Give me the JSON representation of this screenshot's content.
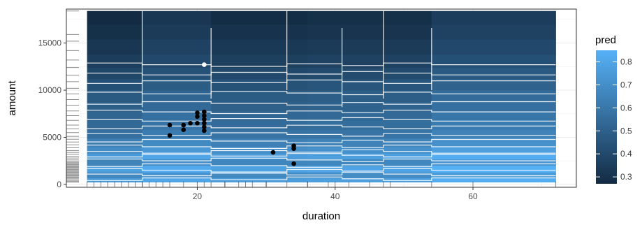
{
  "chart_data": {
    "type": "heatmap",
    "title": "",
    "xlabel": "duration",
    "ylabel": "amount",
    "xlim": [
      1,
      75
    ],
    "ylim": [
      -300,
      18600
    ],
    "x_ticks": [
      20,
      40,
      60
    ],
    "y_ticks": [
      0,
      5000,
      10000,
      15000
    ],
    "x_tick_labels": [
      "20",
      "40",
      "60"
    ],
    "y_tick_labels": [
      "0",
      "5000",
      "10000",
      "15000"
    ],
    "grid": true,
    "surface": {
      "x_range": [
        4,
        72
      ],
      "y_range": [
        250,
        18400
      ],
      "amount_bands": [
        {
          "y": [
            250,
            700
          ],
          "pred": 0.78
        },
        {
          "y": [
            700,
            1300
          ],
          "pred": 0.7
        },
        {
          "y": [
            1300,
            2000
          ],
          "pred": 0.8
        },
        {
          "y": [
            2000,
            2700
          ],
          "pred": 0.68
        },
        {
          "y": [
            2700,
            3300
          ],
          "pred": 0.78
        },
        {
          "y": [
            3300,
            4000
          ],
          "pred": 0.72
        },
        {
          "y": [
            4000,
            4900
          ],
          "pred": 0.66
        },
        {
          "y": [
            4900,
            5800
          ],
          "pred": 0.6
        },
        {
          "y": [
            5800,
            6800
          ],
          "pred": 0.57
        },
        {
          "y": [
            6800,
            7800
          ],
          "pred": 0.55
        },
        {
          "y": [
            7800,
            8800
          ],
          "pred": 0.52
        },
        {
          "y": [
            8800,
            10000
          ],
          "pred": 0.5
        },
        {
          "y": [
            10000,
            11200
          ],
          "pred": 0.46
        },
        {
          "y": [
            11200,
            12400
          ],
          "pred": 0.42
        },
        {
          "y": [
            12400,
            13800
          ],
          "pred": 0.38
        },
        {
          "y": [
            13800,
            15400
          ],
          "pred": 0.35
        },
        {
          "y": [
            15400,
            17000
          ],
          "pred": 0.32
        },
        {
          "y": [
            17000,
            18400
          ],
          "pred": 0.3
        }
      ],
      "duration_bands": [
        {
          "x": [
            4,
            12
          ],
          "shift": -0.03
        },
        {
          "x": [
            12,
            22
          ],
          "shift": 0.02
        },
        {
          "x": [
            22,
            36
          ],
          "shift": -0.02
        },
        {
          "x": [
            36,
            54
          ],
          "shift": -0.01
        },
        {
          "x": [
            54,
            72
          ],
          "shift": 0.05
        }
      ]
    },
    "contour_levels_amount": [
      600,
      1100,
      1500,
      2000,
      2600,
      3100,
      3500,
      4000,
      4600,
      5300,
      6100,
      6900,
      7700,
      8600,
      9700,
      10900,
      11800,
      12700
    ],
    "contour_vertical_breaks_duration": [
      12,
      22,
      33,
      41,
      47,
      54
    ],
    "points": [
      {
        "duration": 16,
        "amount": 6300,
        "color": "black"
      },
      {
        "duration": 16,
        "amount": 5200,
        "color": "black"
      },
      {
        "duration": 18,
        "amount": 6300,
        "color": "black"
      },
      {
        "duration": 18,
        "amount": 5800,
        "color": "black"
      },
      {
        "duration": 19,
        "amount": 6500,
        "color": "black"
      },
      {
        "duration": 20,
        "amount": 7600,
        "color": "black"
      },
      {
        "duration": 20,
        "amount": 7200,
        "color": "black"
      },
      {
        "duration": 20,
        "amount": 6500,
        "color": "black"
      },
      {
        "duration": 21,
        "amount": 7700,
        "color": "black"
      },
      {
        "duration": 21,
        "amount": 7300,
        "color": "black"
      },
      {
        "duration": 21,
        "amount": 6900,
        "color": "black"
      },
      {
        "duration": 21,
        "amount": 6500,
        "color": "black"
      },
      {
        "duration": 21,
        "amount": 6100,
        "color": "black"
      },
      {
        "duration": 21,
        "amount": 5700,
        "color": "black"
      },
      {
        "duration": 31,
        "amount": 3400,
        "color": "black"
      },
      {
        "duration": 34,
        "amount": 4100,
        "color": "black"
      },
      {
        "duration": 34,
        "amount": 3800,
        "color": "black"
      },
      {
        "duration": 34,
        "amount": 2200,
        "color": "black"
      },
      {
        "duration": 21,
        "amount": 12700,
        "color": "white"
      }
    ],
    "rug_duration": [
      4,
      5,
      6,
      7,
      8,
      9,
      10,
      11,
      12,
      12,
      13,
      14,
      15,
      16,
      18,
      20,
      21,
      22,
      24,
      24,
      26,
      27,
      28,
      30,
      30,
      33,
      36,
      36,
      39,
      40,
      42,
      45,
      47,
      48,
      54,
      60,
      72
    ],
    "rug_amount": [
      250,
      350,
      450,
      600,
      700,
      800,
      900,
      1000,
      1100,
      1200,
      1300,
      1400,
      1500,
      1600,
      1700,
      1800,
      1900,
      2000,
      2100,
      2200,
      2300,
      2400,
      2600,
      2800,
      3000,
      3200,
      3400,
      3600,
      3900,
      4200,
      4500,
      4800,
      5100,
      5500,
      5900,
      6300,
      6800,
      7300,
      7800,
      8400,
      9000,
      9600,
      10200,
      10900,
      11600,
      12400,
      13200,
      14200,
      15200,
      15900,
      18400
    ],
    "legend": {
      "title": "pred",
      "placement": "right",
      "min": 0.27,
      "max": 0.85,
      "breaks": [
        0.8,
        0.7,
        0.6,
        0.5,
        0.4,
        0.3
      ],
      "break_labels": [
        "0.8",
        "0.7",
        "0.6",
        "0.5",
        "0.4",
        "0.3"
      ],
      "low_color": "#132B43",
      "high_color": "#56B1F7"
    }
  }
}
